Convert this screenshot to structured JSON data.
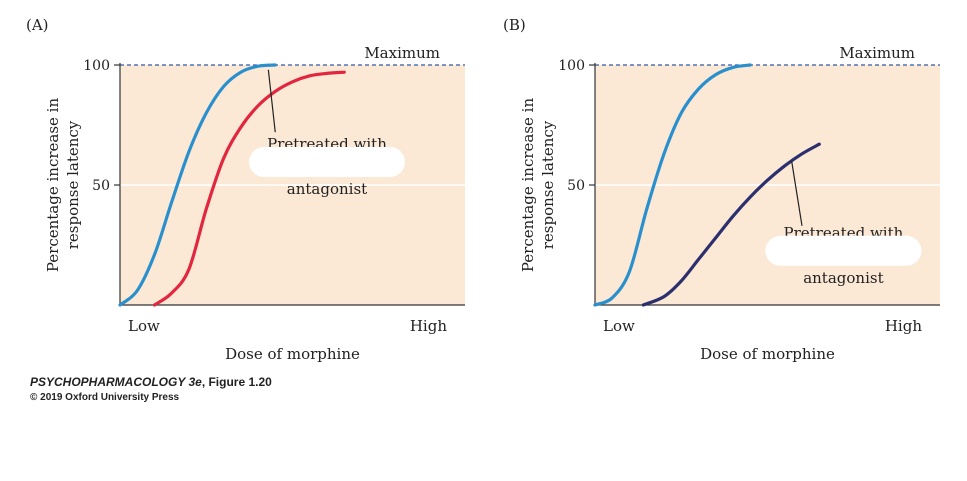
{
  "chart_data": [
    {
      "type": "line",
      "panel_label": "(A)",
      "xlabel": "Dose of morphine",
      "ylabel_lines": [
        "Percentage increase in",
        "response latency"
      ],
      "x_tick_labels": [
        "Low",
        "High"
      ],
      "y_ticks": [
        100,
        50
      ],
      "ylim": [
        0,
        100
      ],
      "max_label": "Maximum",
      "max_value": 100,
      "series": [
        {
          "color": "#2a8fcd",
          "points": [
            [
              0.0,
              0.0
            ],
            [
              0.05,
              6.0
            ],
            [
              0.1,
              21.0
            ],
            [
              0.15,
              43.0
            ],
            [
              0.2,
              64.0
            ],
            [
              0.25,
              80.0
            ],
            [
              0.3,
              91.0
            ],
            [
              0.35,
              97.0
            ],
            [
              0.4,
              99.5
            ],
            [
              0.45,
              100.0
            ]
          ]
        },
        {
          "color": "#e3263f",
          "points": [
            [
              0.1,
              0.0
            ],
            [
              0.15,
              5.0
            ],
            [
              0.2,
              15.0
            ],
            [
              0.25,
              40.0
            ],
            [
              0.3,
              61.0
            ],
            [
              0.35,
              74.0
            ],
            [
              0.4,
              83.0
            ],
            [
              0.45,
              89.0
            ],
            [
              0.5,
              93.0
            ],
            [
              0.55,
              95.5
            ],
            [
              0.6,
              96.5
            ],
            [
              0.65,
              97.0
            ]
          ]
        }
      ],
      "annotation": {
        "lines": [
          "Pretreated with",
          "antagonist"
        ],
        "target": [
          0.43,
          98.0
        ],
        "line_end": [
          0.45,
          72.0
        ],
        "text_anchor": [
          0.6,
          65.0
        ]
      }
    },
    {
      "type": "line",
      "panel_label": "(B)",
      "xlabel": "Dose of morphine",
      "ylabel_lines": [
        "Percentage increase in",
        "response latency"
      ],
      "x_tick_labels": [
        "Low",
        "High"
      ],
      "y_ticks": [
        100,
        50
      ],
      "ylim": [
        0,
        100
      ],
      "max_label": "Maximum",
      "max_value": 100,
      "series": [
        {
          "color": "#2a8fcd",
          "points": [
            [
              0.0,
              0.0
            ],
            [
              0.05,
              3.0
            ],
            [
              0.1,
              14.0
            ],
            [
              0.15,
              40.0
            ],
            [
              0.2,
              63.0
            ],
            [
              0.25,
              80.0
            ],
            [
              0.3,
              90.0
            ],
            [
              0.35,
              96.0
            ],
            [
              0.4,
              99.0
            ],
            [
              0.45,
              100.0
            ]
          ]
        },
        {
          "color": "#2b2f6e",
          "points": [
            [
              0.14,
              0.0
            ],
            [
              0.2,
              3.5
            ],
            [
              0.25,
              10.0
            ],
            [
              0.3,
              19.0
            ],
            [
              0.35,
              28.0
            ],
            [
              0.4,
              37.0
            ],
            [
              0.45,
              45.0
            ],
            [
              0.5,
              52.0
            ],
            [
              0.55,
              58.0
            ],
            [
              0.6,
              63.0
            ],
            [
              0.65,
              67.0
            ]
          ]
        }
      ],
      "annotation": {
        "lines": [
          "Pretreated with",
          "antagonist"
        ],
        "target": [
          0.57,
          60.0
        ],
        "line_end": [
          0.6,
          33.0
        ],
        "text_anchor": [
          0.72,
          28.0
        ]
      }
    }
  ],
  "credit": {
    "book": "PSYCHOPHARMACOLOGY 3e",
    "figure": ", Figure 1.20",
    "copyright": "© 2019 Oxford University Press"
  }
}
